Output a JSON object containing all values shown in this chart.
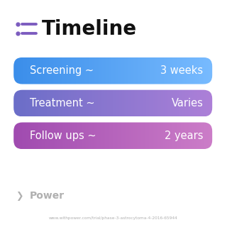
{
  "title": "Timeline",
  "title_icon_color": "#7C5CBF",
  "title_fontsize": 20,
  "title_fontweight": "bold",
  "background_color": "#ffffff",
  "rows": [
    {
      "label": "Screening ~",
      "value": "3 weeks",
      "color_left": "#3B8EEA",
      "color_right": "#78BBFF"
    },
    {
      "label": "Treatment ~",
      "value": "Varies",
      "color_left": "#6B6EC8",
      "color_right": "#AD80D8"
    },
    {
      "label": "Follow ups ~",
      "value": "2 years",
      "color_left": "#A04BB0",
      "color_right": "#CC7DC8"
    }
  ],
  "watermark_text": "Power",
  "watermark_color": "#b0b0b0",
  "url_text": "www.withpower.com/trial/phase-3-astrocytoma-4-2016-65944",
  "url_color": "#b0b0b0",
  "row_text_color": "#ffffff",
  "row_fontsize": 10.5
}
